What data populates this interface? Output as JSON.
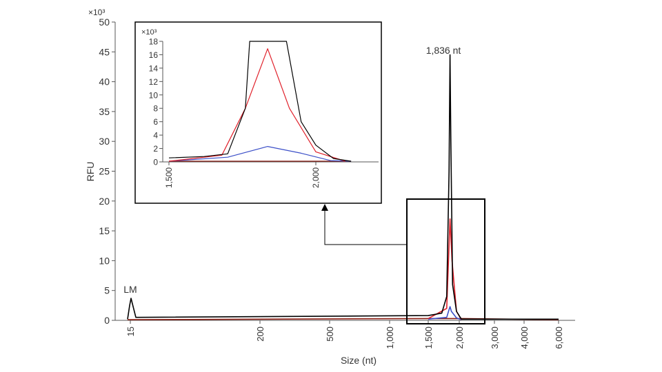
{
  "colors": {
    "series_black": "#000000",
    "series_red": "#e0202a",
    "series_blue": "#3b4fc8",
    "series_darkred": "#8b1a10",
    "axis": "#555555",
    "frame": "#000000"
  },
  "chart_data": [
    {
      "type": "line",
      "xlabel": "Size (nt)",
      "ylabel": "RFU",
      "y_multiplier": "×10³",
      "ylim": [
        0,
        50
      ],
      "y_ticks": [
        0,
        5,
        10,
        15,
        20,
        25,
        30,
        35,
        40,
        45,
        50
      ],
      "x_ticks": [
        "15",
        "200",
        "500",
        "1,000",
        "1,500",
        "2,000",
        "3,000",
        "4,000",
        "6,000"
      ],
      "x_scale": "nonlinear (electropherogram size axis)",
      "grid": false,
      "annotations": [
        "LM",
        "1,836 nt"
      ],
      "series": [
        {
          "color": "black",
          "x": [
            15,
            15,
            15,
            16,
            1500,
            1700,
            1780,
            1820,
            1836,
            1850,
            1880,
            1950,
            2050,
            6000
          ],
          "values": [
            0.2,
            2.5,
            3.7,
            0.5,
            0.8,
            1.2,
            4,
            25,
            44.5,
            30,
            6,
            1.5,
            0.2,
            0.2
          ]
        },
        {
          "color": "red",
          "x": [
            1500,
            1780,
            1810,
            1836,
            1870,
            1950,
            2050
          ],
          "values": [
            0.3,
            2,
            10,
            17,
            10,
            1.5,
            0.1
          ]
        },
        {
          "color": "blue",
          "x": [
            1500,
            1780,
            1820,
            1836,
            1860,
            1950,
            2050
          ],
          "values": [
            0.2,
            0.5,
            1.8,
            2.3,
            1.5,
            0.4,
            0.1
          ]
        },
        {
          "color": "dark red",
          "x": [
            15,
            1500,
            2050,
            6000
          ],
          "values": [
            0.1,
            0.3,
            0.3,
            0.1
          ]
        }
      ]
    },
    {
      "type": "line",
      "role": "inset zoom of boxed region",
      "y_multiplier": "×10³",
      "ylim": [
        0,
        18
      ],
      "y_ticks": [
        0,
        2,
        4,
        6,
        8,
        10,
        12,
        14,
        16,
        18
      ],
      "x_ticks": [
        "1,500",
        "2,000"
      ],
      "grid": false,
      "series": [
        {
          "color": "black",
          "x": [
            1500,
            1620,
            1700,
            1760,
            1775,
            1900,
            1950,
            2000,
            2060,
            2120
          ],
          "values": [
            0.6,
            0.8,
            1.2,
            8,
            18,
            18,
            6,
            2.5,
            0.5,
            0.1
          ]
        },
        {
          "color": "red",
          "x": [
            1500,
            1680,
            1760,
            1836,
            1910,
            2000,
            2100
          ],
          "values": [
            0.1,
            1,
            8,
            16.9,
            8,
            1.5,
            0.1
          ]
        },
        {
          "color": "blue",
          "x": [
            1500,
            1700,
            1836,
            1950,
            2050,
            2120
          ],
          "values": [
            0.1,
            0.7,
            2.3,
            1.3,
            0.2,
            0.1
          ]
        },
        {
          "color": "dark red",
          "x": [
            1500,
            2120
          ],
          "values": [
            0.1,
            0.1
          ]
        }
      ]
    }
  ]
}
